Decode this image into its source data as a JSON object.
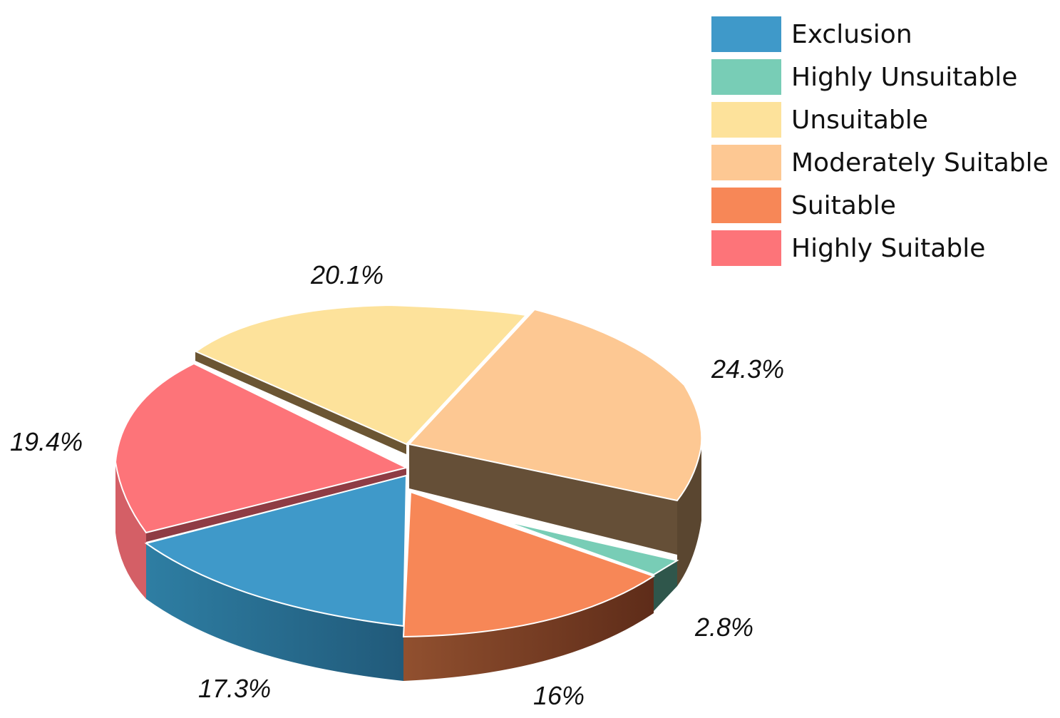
{
  "chart_data": {
    "type": "pie",
    "style": "3d exploded",
    "legend_position": "top-right",
    "slices": [
      {
        "name": "Exclusion",
        "value": 17.3,
        "label": "17.3%",
        "color": "#3f99c9"
      },
      {
        "name": "Highly Unsuitable",
        "value": 2.8,
        "label": "2.8%",
        "color": "#78cdb6"
      },
      {
        "name": "Unsuitable",
        "value": 20.1,
        "label": "20.1%",
        "color": "#fde29b"
      },
      {
        "name": "Moderately Suitable",
        "value": 24.3,
        "label": "24.3%",
        "color": "#fdc893"
      },
      {
        "name": "Suitable",
        "value": 16,
        "label": "16%",
        "color": "#f78757"
      },
      {
        "name": "Highly Suitable",
        "value": 19.4,
        "label": "19.4%",
        "color": "#fd7479"
      }
    ]
  }
}
